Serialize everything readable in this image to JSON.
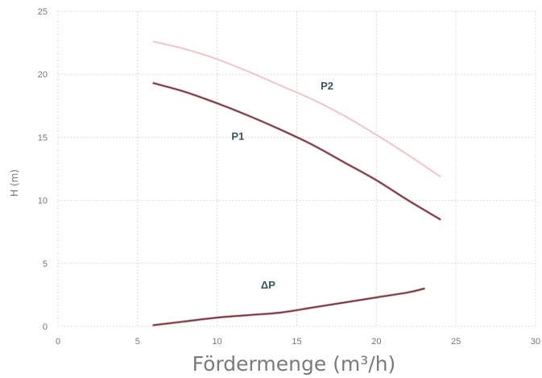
{
  "chart_data": {
    "type": "line",
    "xlabel": "Fördermenge (m³/h)",
    "ylabel": "H (m)",
    "xlim": [
      0,
      30
    ],
    "ylim": [
      0,
      25
    ],
    "x_ticks": [
      0,
      5,
      10,
      15,
      20,
      25,
      30
    ],
    "y_ticks": [
      0,
      5,
      10,
      15,
      20,
      25
    ],
    "grid": true,
    "series": [
      {
        "name": "P1",
        "color": "#5a3a40",
        "highlight_color": "#e8909a",
        "x": [
          6,
          8,
          10,
          12,
          14,
          16,
          18,
          20,
          22,
          24
        ],
        "y": [
          19.3,
          18.6,
          17.7,
          16.7,
          15.6,
          14.4,
          13.0,
          11.6,
          10.0,
          8.5
        ]
      },
      {
        "name": "P2",
        "color": "#f2c4c8",
        "highlight_color": "#f2c4c8",
        "x": [
          6,
          8,
          10,
          12,
          14,
          16,
          18,
          20,
          22,
          24
        ],
        "y": [
          22.6,
          22.0,
          21.2,
          20.2,
          19.1,
          18.0,
          16.7,
          15.2,
          13.6,
          11.9
        ]
      },
      {
        "name": "ΔP",
        "color": "#5a3a40",
        "highlight_color": "#e8909a",
        "x": [
          6,
          8,
          10,
          12,
          14,
          16,
          18,
          20,
          22,
          23
        ],
        "y": [
          0.1,
          0.4,
          0.7,
          0.9,
          1.1,
          1.5,
          1.9,
          2.3,
          2.7,
          3.0
        ]
      }
    ],
    "annotations": [
      {
        "text": "P2",
        "x": 16.9,
        "y": 18.8
      },
      {
        "text": "P1",
        "x": 11.3,
        "y": 14.8
      },
      {
        "text": "ΔP",
        "x": 13.2,
        "y": 3.0
      }
    ],
    "colors": {
      "grid": "#dcdcdc",
      "tick_text": "#777777",
      "axis_title_x": "#7a7a7a",
      "axis_title_y": "#3a5560"
    }
  }
}
